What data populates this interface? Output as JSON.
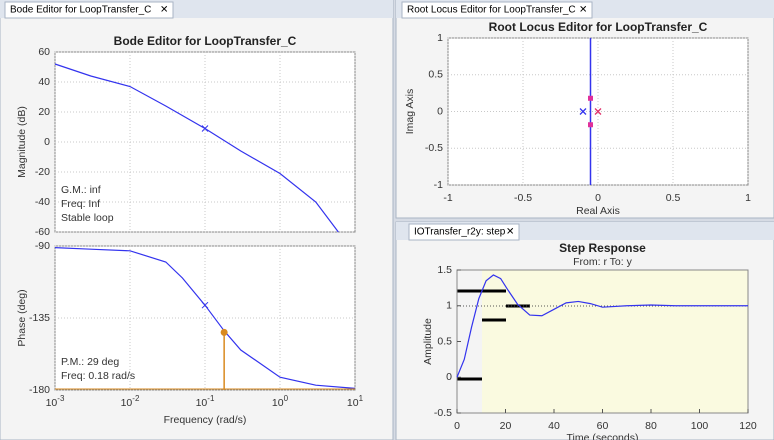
{
  "tabs": [
    "Bode Editor for LoopTransfer_C",
    "Root Locus Editor for LoopTransfer_C",
    "IOTransfer_r2y: step"
  ],
  "chart_data": [
    {
      "type": "line",
      "title": "Bode Editor for LoopTransfer_C",
      "ylabel": "Magnitude (dB)",
      "xscale": "log",
      "xlim": [
        0.001,
        10
      ],
      "ylim": [
        -60,
        60
      ],
      "yticks": [
        -60,
        -40,
        -20,
        0,
        20,
        40,
        60
      ],
      "grid": true,
      "series": [
        {
          "color": "#3333ee",
          "x": [
            0.001,
            0.003,
            0.01,
            0.03,
            0.1,
            0.3,
            1,
            3,
            6
          ],
          "values": [
            52,
            44,
            37,
            24,
            9,
            -6,
            -21,
            -40,
            -60
          ]
        }
      ],
      "markers": [
        {
          "x": 0.1,
          "y": 9
        }
      ],
      "annotations": [
        "G.M.: inf",
        "Freq: Inf",
        "Stable loop"
      ]
    },
    {
      "type": "line",
      "ylabel": "Phase (deg)",
      "xlabel": "Frequency (rad/s)",
      "xscale": "log",
      "xlim": [
        0.001,
        10
      ],
      "ylim": [
        -180,
        -90
      ],
      "yticks": [
        -180,
        -135,
        -90
      ],
      "grid": true,
      "xticks": [
        {
          "value": 0.001,
          "label": "10^-3"
        },
        {
          "value": 0.01,
          "label": "10^-2"
        },
        {
          "value": 0.1,
          "label": "10^-1"
        },
        {
          "value": 1,
          "label": "10^0"
        },
        {
          "value": 10,
          "label": "10^1"
        }
      ],
      "series": [
        {
          "color": "#3333ee",
          "x": [
            0.001,
            0.003,
            0.01,
            0.03,
            0.05,
            0.1,
            0.18,
            0.3,
            1,
            3,
            10
          ],
          "values": [
            -91,
            -92,
            -93,
            -100,
            -110,
            -127,
            -143,
            -155,
            -172,
            -177,
            -179
          ]
        }
      ],
      "markers": [
        {
          "x": 0.1,
          "y": -127
        }
      ],
      "margin_point": {
        "x": 0.18,
        "y": -144,
        "color": "#d98a1f"
      },
      "annotations": [
        "P.M.: 29 deg",
        "Freq: 0.18 rad/s"
      ]
    },
    {
      "type": "scatter",
      "title": "Root Locus Editor for LoopTransfer_C",
      "xlabel": "Real Axis",
      "ylabel": "Imag Axis",
      "xlim": [
        -1,
        1
      ],
      "ylim": [
        -1,
        1
      ],
      "xticks": [
        -1,
        -0.5,
        0,
        0.5,
        1
      ],
      "yticks": [
        -1,
        -0.5,
        0,
        0.5,
        1
      ],
      "grid": true,
      "locus": {
        "color": "#3333ee",
        "x": [
          -0.05,
          -0.05
        ],
        "y": [
          -1,
          1
        ]
      },
      "series": [
        {
          "marker": "x",
          "color": "#3333ee",
          "x": [
            -0.1
          ],
          "values": [
            0
          ]
        },
        {
          "marker": "x",
          "color": "#e0306a",
          "x": [
            0
          ],
          "values": [
            0
          ]
        },
        {
          "marker": "square",
          "color": "#e0309a",
          "x": [
            -0.05,
            -0.05
          ],
          "values": [
            0.18,
            -0.18
          ]
        }
      ]
    },
    {
      "type": "line",
      "title": "Step Response",
      "subtitle": "From: r  To: y",
      "xlabel": "Time (seconds)",
      "ylabel": "Amplitude",
      "xlim": [
        0,
        120
      ],
      "ylim": [
        -0.5,
        1.5
      ],
      "xticks": [
        0,
        20,
        40,
        60,
        80,
        100,
        120
      ],
      "yticks": [
        -0.5,
        0,
        0.5,
        1,
        1.5
      ],
      "grid": false,
      "series": [
        {
          "color": "#3333ee",
          "x": [
            0,
            3,
            6,
            9,
            12,
            15,
            18,
            21,
            25,
            30,
            35,
            40,
            45,
            50,
            55,
            60,
            70,
            80,
            90,
            100,
            120
          ],
          "values": [
            0,
            0.25,
            0.7,
            1.1,
            1.35,
            1.43,
            1.38,
            1.22,
            1.02,
            0.87,
            0.86,
            0.95,
            1.04,
            1.06,
            1.03,
            0.98,
            1.0,
            1.01,
            1.0,
            1.0,
            1.0
          ]
        }
      ]
    }
  ]
}
